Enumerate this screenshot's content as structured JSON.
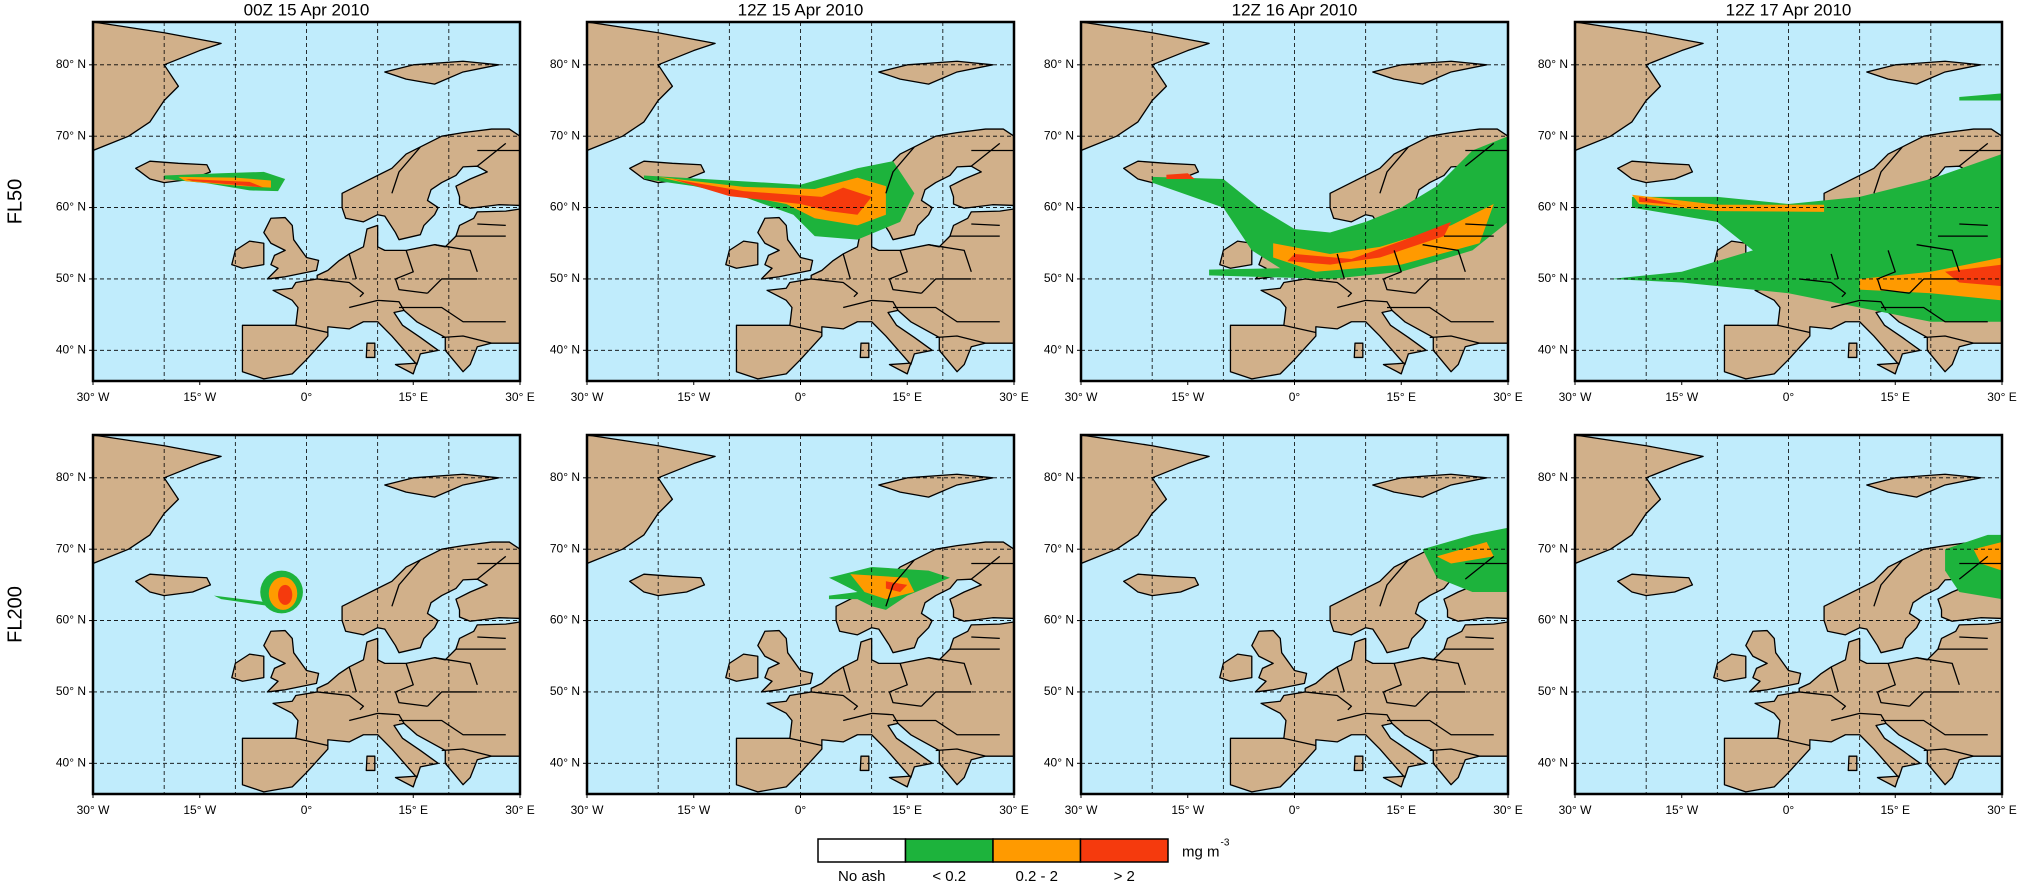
{
  "panel_titles": [
    "00Z 15 Apr 2010",
    "12Z 15 Apr 2010",
    "12Z 16 Apr 2010",
    "12Z 17 Apr 2010"
  ],
  "row_labels": [
    "FL50",
    "FL200"
  ],
  "lat_range": [
    35.7,
    86
  ],
  "lon_range": [
    -30,
    30
  ],
  "lat_ticks": [
    {
      "value": 40,
      "label": "40° N"
    },
    {
      "value": 50,
      "label": "50° N"
    },
    {
      "value": 60,
      "label": "60° N"
    },
    {
      "value": 70,
      "label": "70° N"
    },
    {
      "value": 80,
      "label": "80° N"
    }
  ],
  "lon_ticks": [
    {
      "value": -30,
      "label": "30° W"
    },
    {
      "value": -15,
      "label": "15° W"
    },
    {
      "value": 0,
      "label": "0°"
    },
    {
      "value": 15,
      "label": "15° E"
    },
    {
      "value": 30,
      "label": "30° E"
    }
  ],
  "grid_lat": [
    40,
    50,
    60,
    70,
    80
  ],
  "grid_lon": [
    -20,
    -10,
    0,
    10,
    20
  ],
  "ocean_color": "#c0ecfc",
  "land_color": "#d1b08a",
  "legend": {
    "entries": [
      {
        "label": "No ash",
        "color": "#ffffff"
      },
      {
        "label": "< 0.2",
        "color": "#1db33c"
      },
      {
        "label": "0.2 - 2",
        "color": "#ff9a00"
      },
      {
        "label": "> 2",
        "color": "#f53a0d"
      }
    ],
    "unit": "mg m",
    "unit_superscript": "-3"
  }
}
